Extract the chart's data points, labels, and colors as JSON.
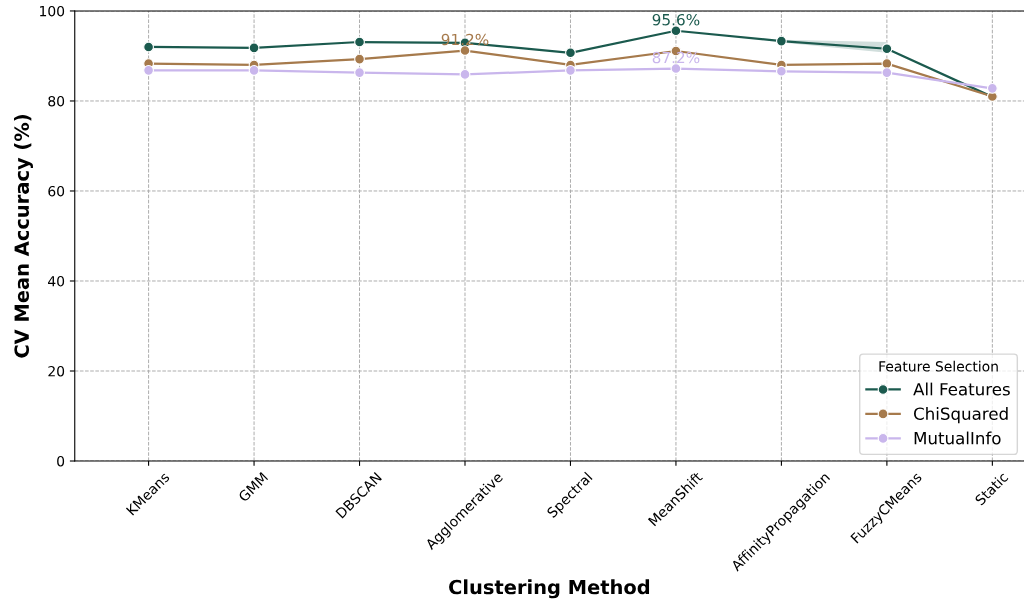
{
  "chart_data": {
    "type": "line",
    "xlabel": "Clustering Method",
    "ylabel": "CV Mean Accuracy (%)",
    "legend_title": "Feature Selection",
    "categories": [
      "KMeans",
      "GMM",
      "DBSCAN",
      "Agglomerative",
      "Spectral",
      "MeanShift",
      "AffinityPropagation",
      "FuzzyCMeans",
      "Static"
    ],
    "series": [
      {
        "name": "All Features",
        "color": "#1b5a4e",
        "values": [
          92.0,
          91.8,
          93.1,
          92.9,
          90.7,
          95.6,
          93.3,
          91.6,
          80.9
        ],
        "lower": [
          null,
          null,
          null,
          null,
          null,
          null,
          93.0,
          90.7,
          null
        ],
        "upper": [
          null,
          null,
          null,
          null,
          null,
          null,
          93.6,
          93.1,
          null
        ],
        "value_labels": [
          null,
          null,
          null,
          null,
          null,
          "95.6%",
          null,
          null,
          null
        ]
      },
      {
        "name": "ChiSquared",
        "color": "#a67a4c",
        "values": [
          88.3,
          88.0,
          89.3,
          91.2,
          88.0,
          91.1,
          88.0,
          88.3,
          81.0
        ],
        "value_labels": [
          null,
          null,
          null,
          "91.2%",
          null,
          null,
          null,
          null,
          null
        ]
      },
      {
        "name": "MutualInfo",
        "color": "#c9b6ec",
        "values": [
          86.8,
          86.8,
          86.3,
          85.9,
          86.8,
          87.2,
          86.6,
          86.3,
          82.8
        ],
        "value_labels": [
          null,
          null,
          null,
          null,
          null,
          "87.2%",
          null,
          null,
          null
        ]
      }
    ],
    "ylim": [
      0,
      100
    ],
    "yticks": [
      0,
      20,
      40,
      60,
      80,
      100
    ],
    "grid": true,
    "legend": "bottom right",
    "marker": "circle",
    "line_style": "solid"
  }
}
